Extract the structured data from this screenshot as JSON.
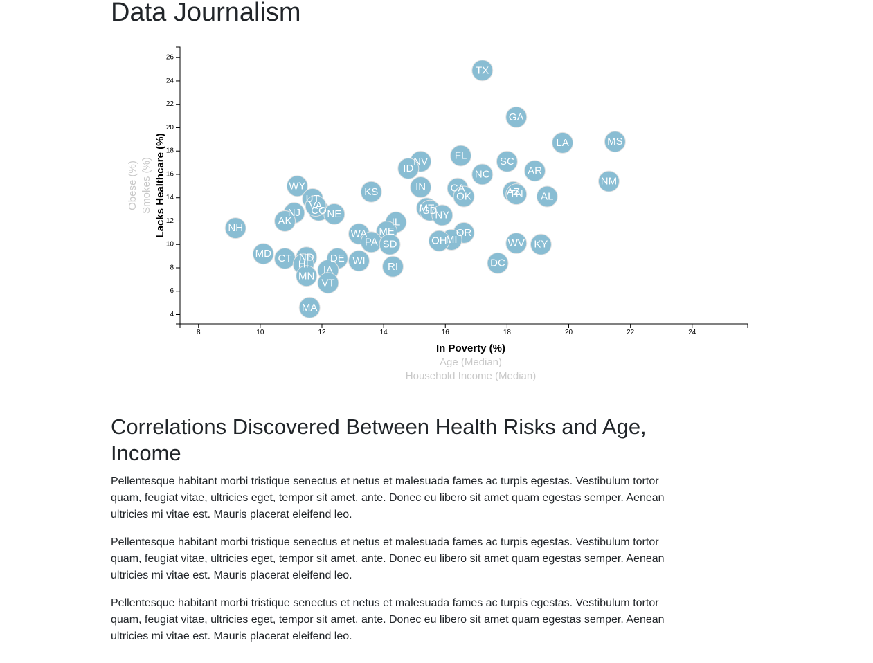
{
  "page": {
    "title": "Data Journalism"
  },
  "article": {
    "heading": "Correlations Discovered Between Health Risks and Age, Income",
    "paragraphs": [
      "Pellentesque habitant morbi tristique senectus et netus et malesuada fames ac turpis egestas. Vestibulum tortor quam, feugiat vitae, ultricies eget, tempor sit amet, ante. Donec eu libero sit amet quam egestas semper. Aenean ultricies mi vitae est. Mauris placerat eleifend leo.",
      "Pellentesque habitant morbi tristique senectus et netus et malesuada fames ac turpis egestas. Vestibulum tortor quam, feugiat vitae, ultricies eget, tempor sit amet, ante. Donec eu libero sit amet quam egestas semper. Aenean ultricies mi vitae est. Mauris placerat eleifend leo.",
      "Pellentesque habitant morbi tristique senectus et netus et malesuada fames ac turpis egestas. Vestibulum tortor quam, feugiat vitae, ultricies eget, tempor sit amet, ante. Donec eu libero sit amet quam egestas semper. Aenean ultricies mi vitae est. Mauris placerat eleifend leo."
    ]
  },
  "chart_data": {
    "type": "scatter",
    "title": "",
    "xlim": [
      7.4,
      25.8
    ],
    "ylim": [
      3.2,
      26.9
    ],
    "x_ticks": [
      8,
      10,
      12,
      14,
      16,
      18,
      20,
      22,
      24
    ],
    "y_ticks": [
      4,
      6,
      8,
      10,
      12,
      14,
      16,
      18,
      20,
      22,
      24,
      26
    ],
    "x_axis_labels": [
      {
        "label": "In Poverty (%)",
        "active": true
      },
      {
        "label": "Age (Median)",
        "active": false
      },
      {
        "label": "Household Income (Median)",
        "active": false
      }
    ],
    "y_axis_labels": [
      {
        "label": "Lacks Healthcare (%)",
        "active": true
      },
      {
        "label": "Smokes (%)",
        "active": false
      },
      {
        "label": "Obese (%)",
        "active": false
      }
    ],
    "colors": {
      "marker_fill": "#89bdd3",
      "marker_stroke": "#e3e3e3",
      "marker_text": "#ffffff",
      "active_label": "#000000",
      "inactive_label": "#c9c9c9"
    },
    "points": [
      {
        "state": "TX",
        "x": 17.2,
        "y": 24.9
      },
      {
        "state": "GA",
        "x": 18.3,
        "y": 20.9
      },
      {
        "state": "LA",
        "x": 19.8,
        "y": 18.7
      },
      {
        "state": "MS",
        "x": 21.5,
        "y": 18.8
      },
      {
        "state": "FL",
        "x": 16.5,
        "y": 17.6
      },
      {
        "state": "SC",
        "x": 18.0,
        "y": 17.1
      },
      {
        "state": "NV",
        "x": 15.2,
        "y": 17.1
      },
      {
        "state": "ID",
        "x": 14.8,
        "y": 16.5
      },
      {
        "state": "AR",
        "x": 18.9,
        "y": 16.3
      },
      {
        "state": "NC",
        "x": 17.2,
        "y": 16.0
      },
      {
        "state": "NM",
        "x": 21.3,
        "y": 15.4
      },
      {
        "state": "WY",
        "x": 11.2,
        "y": 15.0
      },
      {
        "state": "IN",
        "x": 15.2,
        "y": 14.9
      },
      {
        "state": "CA",
        "x": 16.4,
        "y": 14.8
      },
      {
        "state": "KS",
        "x": 13.6,
        "y": 14.5
      },
      {
        "state": "AZ",
        "x": 18.2,
        "y": 14.5
      },
      {
        "state": "TN",
        "x": 18.3,
        "y": 14.3
      },
      {
        "state": "OK",
        "x": 16.6,
        "y": 14.1
      },
      {
        "state": "AL",
        "x": 19.3,
        "y": 14.1
      },
      {
        "state": "UT",
        "x": 11.7,
        "y": 13.9
      },
      {
        "state": "CO",
        "x": 11.9,
        "y": 12.9
      },
      {
        "state": "VA",
        "x": 11.8,
        "y": 13.3
      },
      {
        "state": "MT",
        "x": 15.4,
        "y": 13.1
      },
      {
        "state": "SD",
        "x": 15.5,
        "y": 12.9
      },
      {
        "state": "NJ",
        "x": 11.1,
        "y": 12.7
      },
      {
        "state": "NE",
        "x": 12.4,
        "y": 12.6
      },
      {
        "state": "NY",
        "x": 15.9,
        "y": 12.5
      },
      {
        "state": "AK",
        "x": 10.8,
        "y": 12.0
      },
      {
        "state": "IL",
        "x": 14.4,
        "y": 11.9
      },
      {
        "state": "NH",
        "x": 9.2,
        "y": 11.4
      },
      {
        "state": "ME",
        "x": 14.1,
        "y": 11.1
      },
      {
        "state": "OR",
        "x": 16.6,
        "y": 11.0
      },
      {
        "state": "WA",
        "x": 13.2,
        "y": 10.9
      },
      {
        "state": "MI",
        "x": 16.2,
        "y": 10.4
      },
      {
        "state": "PA",
        "x": 13.6,
        "y": 10.2
      },
      {
        "state": "OH",
        "x": 15.8,
        "y": 10.3
      },
      {
        "state": "WV",
        "x": 18.3,
        "y": 10.1
      },
      {
        "state": "KY",
        "x": 19.1,
        "y": 10.0
      },
      {
        "state": "SD2",
        "x": 14.2,
        "y": 10.0
      },
      {
        "state": "MD",
        "x": 10.1,
        "y": 9.2
      },
      {
        "state": "ND",
        "x": 11.5,
        "y": 8.9
      },
      {
        "state": "CT",
        "x": 10.8,
        "y": 8.8
      },
      {
        "state": "DE",
        "x": 12.5,
        "y": 8.8
      },
      {
        "state": "WI",
        "x": 13.2,
        "y": 8.6
      },
      {
        "state": "HI",
        "x": 11.4,
        "y": 8.3
      },
      {
        "state": "DC",
        "x": 17.7,
        "y": 8.4
      },
      {
        "state": "RI",
        "x": 14.3,
        "y": 8.1
      },
      {
        "state": "IA",
        "x": 12.2,
        "y": 7.8
      },
      {
        "state": "MN",
        "x": 11.5,
        "y": 7.3
      },
      {
        "state": "VT",
        "x": 12.2,
        "y": 6.7
      },
      {
        "state": "MA",
        "x": 11.6,
        "y": 4.6
      }
    ]
  }
}
